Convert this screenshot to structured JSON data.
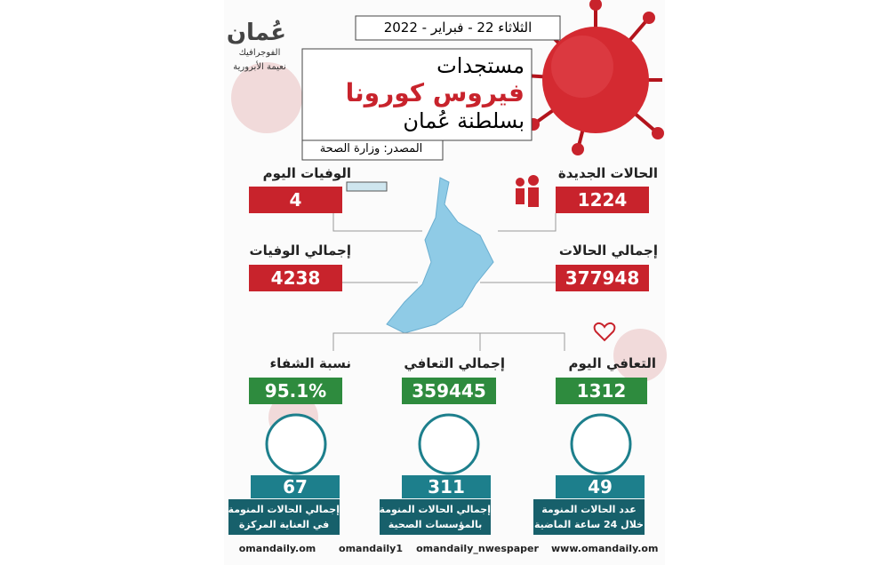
{
  "logo": {
    "name": "عُمان",
    "subtitle": "الفوجرافيك",
    "author": "نعيمة الأبرورية"
  },
  "header": {
    "date": "الثلاثاء 22 - فبراير - 2022",
    "title_lines": [
      "مستجدات",
      "فيروس كورونا",
      "بسلطنة عُمان"
    ],
    "source": "المصدر: وزارة الصحة"
  },
  "stats": [
    {
      "label": "الحالات الجديدة",
      "value": 1224
    },
    {
      "label": "الوفيات اليوم",
      "value": 4
    },
    {
      "label": "إجمالي الحالات",
      "value": 377948
    },
    {
      "label": "إجمالي الوفيات",
      "value": 4238
    },
    {
      "label": "التعافي اليوم",
      "value": 1312
    },
    {
      "label": "إجمالي التعافي",
      "value": 359445
    },
    {
      "label": "نسبة الشفاء",
      "value": "95.1%"
    }
  ],
  "hospital": [
    {
      "value": 49,
      "label_lines": [
        "عدد الحالات المنومة",
        "خلال 24 ساعة الماضية"
      ]
    },
    {
      "value": 311,
      "label_lines": [
        "إجمالي الحالات المنومة",
        "بالمؤسسات الصحية"
      ]
    },
    {
      "value": 67,
      "label_lines": [
        "إجمالي الحالات المنومة",
        "في العناية المركزة"
      ]
    }
  ],
  "footer": [
    "www.omandaily.om",
    "omandaily_nwespaper",
    "omandaily1",
    "omandaily.om"
  ]
}
